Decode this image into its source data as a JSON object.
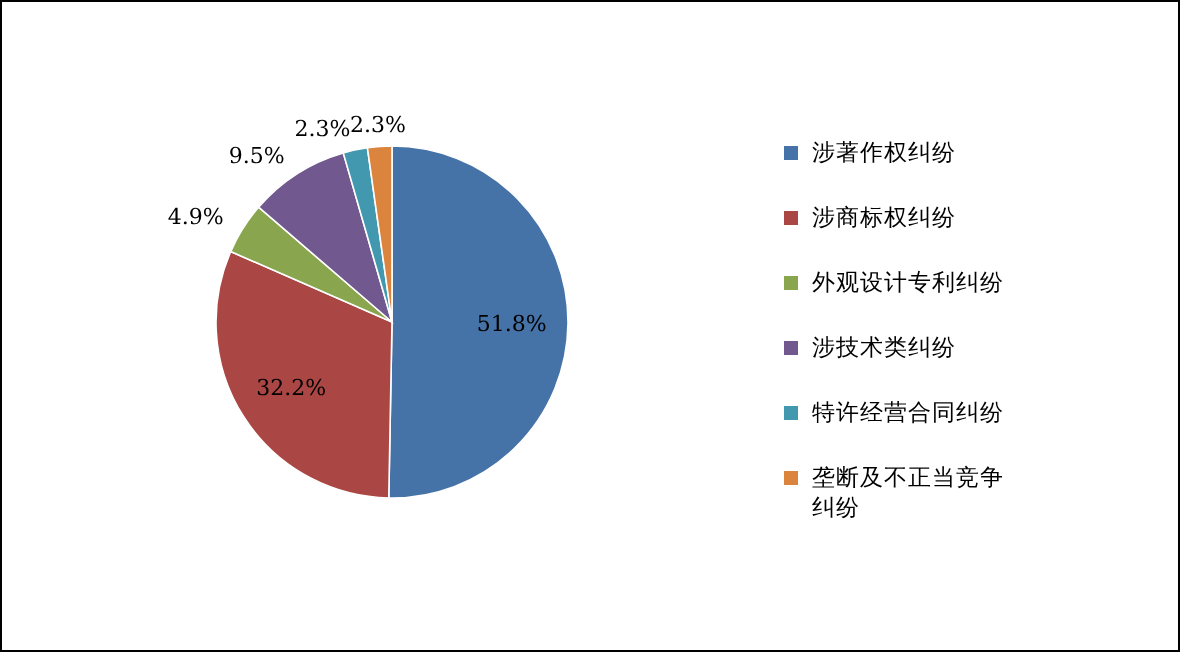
{
  "chart_data": {
    "type": "pie",
    "categories": [
      "涉著作权纠纷",
      "涉商标权纠纷",
      "外观设计专利纠纷",
      "涉技术类纠纷",
      "特许经营合同纠纷",
      "垄断及不正当竞争纠纷"
    ],
    "values": [
      51.8,
      32.2,
      4.9,
      9.5,
      2.3,
      2.3
    ],
    "colors": [
      "#4572a7",
      "#aa4643",
      "#89a54e",
      "#71588f",
      "#4198af",
      "#db843d"
    ],
    "value_labels": [
      "51.8%",
      "32.2%",
      "4.9%",
      "9.5%",
      "2.3%",
      "2.3%"
    ],
    "legend": "right"
  }
}
